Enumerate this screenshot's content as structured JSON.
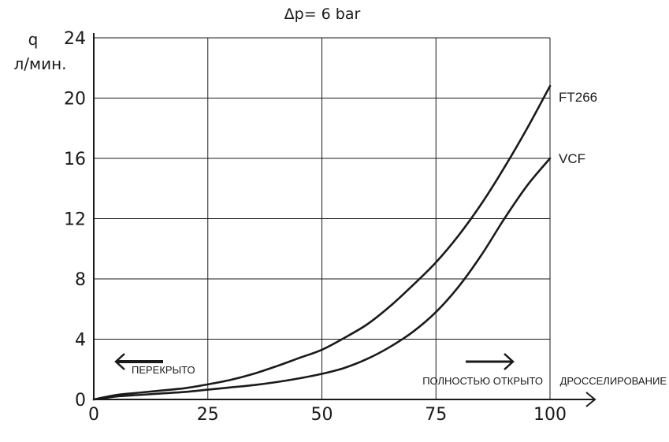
{
  "chart_data": {
    "type": "line",
    "title": "Δp= 6 bar",
    "ylabel_symbol": "q",
    "ylabel_unit": "л/мин.",
    "xlabel": "ДРОССЕЛИРОВАНИЕ",
    "xlim": [
      0,
      100
    ],
    "ylim": [
      0,
      24
    ],
    "xticks": [
      "0",
      "25",
      "50",
      "75",
      "100"
    ],
    "yticks": [
      "0",
      "4",
      "8",
      "12",
      "16",
      "20",
      "24"
    ],
    "grid": true,
    "annotations": {
      "closed": "ПЕРЕКРЫТО",
      "open": "ПОЛНОСТЬЮ ОТКРЫТО"
    },
    "series": [
      {
        "name": "FT266",
        "color": "#1a1a1a",
        "points": [
          [
            0,
            0
          ],
          [
            5,
            0.3
          ],
          [
            10,
            0.45
          ],
          [
            15,
            0.6
          ],
          [
            20,
            0.75
          ],
          [
            25,
            1.0
          ],
          [
            30,
            1.3
          ],
          [
            35,
            1.7
          ],
          [
            40,
            2.2
          ],
          [
            45,
            2.75
          ],
          [
            50,
            3.3
          ],
          [
            55,
            4.1
          ],
          [
            60,
            5.0
          ],
          [
            65,
            6.2
          ],
          [
            70,
            7.6
          ],
          [
            75,
            9.1
          ],
          [
            80,
            10.9
          ],
          [
            85,
            13.0
          ],
          [
            90,
            15.4
          ],
          [
            95,
            18.0
          ],
          [
            100,
            20.8
          ]
        ]
      },
      {
        "name": "VCF",
        "color": "#1a1a1a",
        "points": [
          [
            0,
            0
          ],
          [
            5,
            0.2
          ],
          [
            10,
            0.3
          ],
          [
            15,
            0.4
          ],
          [
            20,
            0.5
          ],
          [
            25,
            0.65
          ],
          [
            30,
            0.8
          ],
          [
            35,
            0.95
          ],
          [
            40,
            1.15
          ],
          [
            45,
            1.4
          ],
          [
            50,
            1.7
          ],
          [
            55,
            2.1
          ],
          [
            60,
            2.7
          ],
          [
            65,
            3.5
          ],
          [
            70,
            4.5
          ],
          [
            75,
            5.8
          ],
          [
            80,
            7.5
          ],
          [
            85,
            9.6
          ],
          [
            90,
            12.0
          ],
          [
            95,
            14.2
          ],
          [
            100,
            16.0
          ]
        ]
      }
    ]
  }
}
